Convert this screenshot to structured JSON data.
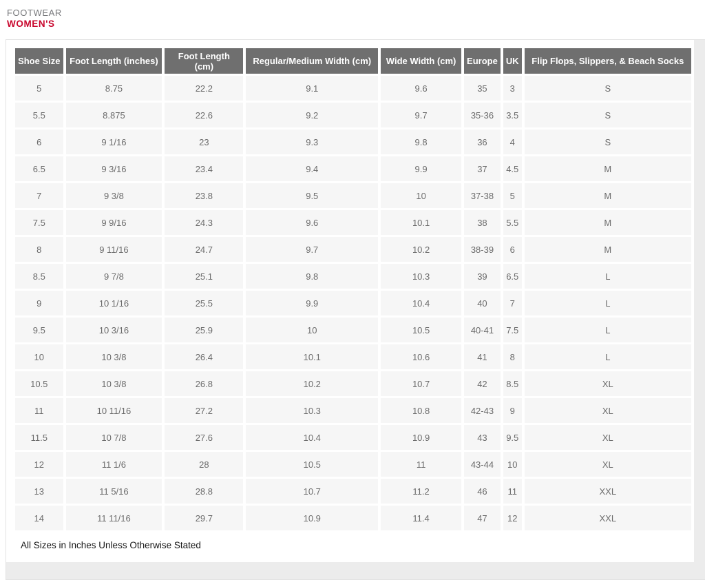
{
  "header": {
    "category": "FOOTWEAR",
    "title": "WOMEN'S"
  },
  "footnote": "All Sizes in Inches Unless Otherwise Stated",
  "colors": {
    "title_red": "#c9082e",
    "category_gray": "#77787b",
    "header_bg": "#6f6f6f",
    "header_text": "#ffffff",
    "cell_bg": "#f6f6f6",
    "cell_text": "#6b6b6b",
    "panel_bg": "#ececec",
    "panel_border": "#e2e2e2"
  },
  "chart_data": {
    "type": "table",
    "title": "Women's footwear size chart",
    "headers": [
      "Shoe Size",
      "Foot Length (inches)",
      "Foot Length (cm)",
      "Regular/Medium Width (cm)",
      "Wide Width (cm)",
      "Europe",
      "UK",
      "Flip Flops, Slippers, & Beach Socks"
    ],
    "rows": [
      [
        "5",
        "8.75",
        "22.2",
        "9.1",
        "9.6",
        "35",
        "3",
        "S"
      ],
      [
        "5.5",
        "8.875",
        "22.6",
        "9.2",
        "9.7",
        "35-36",
        "3.5",
        "S"
      ],
      [
        "6",
        "9 1/16",
        "23",
        "9.3",
        "9.8",
        "36",
        "4",
        "S"
      ],
      [
        "6.5",
        "9 3/16",
        "23.4",
        "9.4",
        "9.9",
        "37",
        "4.5",
        "M"
      ],
      [
        "7",
        "9 3/8",
        "23.8",
        "9.5",
        "10",
        "37-38",
        "5",
        "M"
      ],
      [
        "7.5",
        "9 9/16",
        "24.3",
        "9.6",
        "10.1",
        "38",
        "5.5",
        "M"
      ],
      [
        "8",
        "9 11/16",
        "24.7",
        "9.7",
        "10.2",
        "38-39",
        "6",
        "M"
      ],
      [
        "8.5",
        "9 7/8",
        "25.1",
        "9.8",
        "10.3",
        "39",
        "6.5",
        "L"
      ],
      [
        "9",
        "10 1/16",
        "25.5",
        "9.9",
        "10.4",
        "40",
        "7",
        "L"
      ],
      [
        "9.5",
        "10 3/16",
        "25.9",
        "10",
        "10.5",
        "40-41",
        "7.5",
        "L"
      ],
      [
        "10",
        "10 3/8",
        "26.4",
        "10.1",
        "10.6",
        "41",
        "8",
        "L"
      ],
      [
        "10.5",
        "10 3/8",
        "26.8",
        "10.2",
        "10.7",
        "42",
        "8.5",
        "XL"
      ],
      [
        "11",
        "10 11/16",
        "27.2",
        "10.3",
        "10.8",
        "42-43",
        "9",
        "XL"
      ],
      [
        "11.5",
        "10 7/8",
        "27.6",
        "10.4",
        "10.9",
        "43",
        "9.5",
        "XL"
      ],
      [
        "12",
        "11 1/6",
        "28",
        "10.5",
        "11",
        "43-44",
        "10",
        "XL"
      ],
      [
        "13",
        "11 5/16",
        "28.8",
        "10.7",
        "11.2",
        "46",
        "11",
        "XXL"
      ],
      [
        "14",
        "11 11/16",
        "29.7",
        "10.9",
        "11.4",
        "47",
        "12",
        "XXL"
      ]
    ]
  }
}
